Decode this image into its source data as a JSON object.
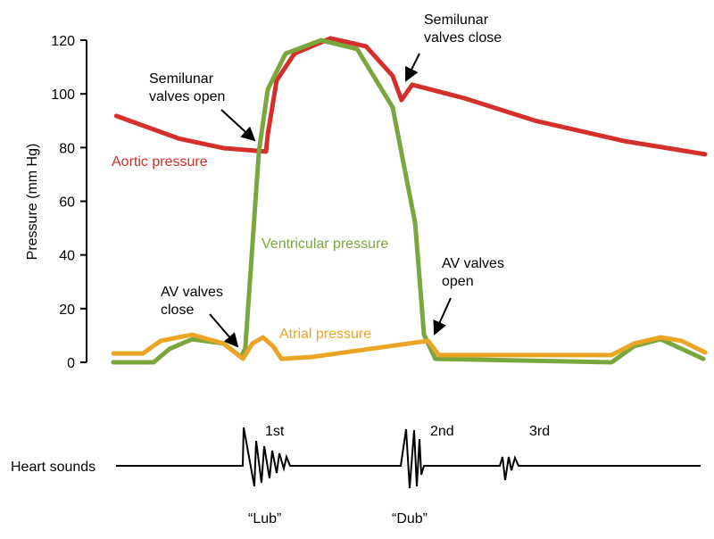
{
  "chart_data": {
    "type": "line",
    "ylabel": "Pressure (mm Hg)",
    "ylim": [
      0,
      120
    ],
    "yticks": [
      0,
      20,
      40,
      60,
      80,
      100,
      120
    ],
    "grid": false,
    "series": [
      {
        "name": "Aortic pressure",
        "color": "#d42f2a",
        "x": [
          0.5,
          11,
          18.6,
          25.8,
          26.1,
          27.6,
          30.6,
          36.7,
          42.7,
          47.2,
          48.7,
          50.5,
          59.3,
          71.3,
          86.4,
          100
        ],
        "y": [
          91.8,
          83.4,
          79.8,
          78.5,
          85,
          105,
          115,
          120.7,
          117.7,
          106.7,
          97.7,
          103.4,
          98.4,
          90,
          82.4,
          77.5
        ]
      },
      {
        "name": "Ventricular pressure",
        "color": "#7ba63e",
        "x": [
          0,
          6.8,
          9.5,
          13.3,
          18.6,
          21.6,
          22.3,
          24.6,
          26.1,
          29.1,
          35.1,
          41.2,
          47.2,
          51,
          52.5,
          54.4,
          84.2,
          88,
          92.5,
          99.7
        ],
        "y": [
          0,
          0,
          5,
          8.6,
          7,
          2,
          5.3,
          78.5,
          101.7,
          115,
          120,
          116.7,
          95,
          51.9,
          10.3,
          1.3,
          0,
          6,
          8.6,
          1.3
        ]
      },
      {
        "name": "Atrial pressure",
        "color": "#eba524",
        "x": [
          0,
          5,
          8,
          13.3,
          18.6,
          21.9,
          23.5,
          25.3,
          27,
          28.4,
          33.6,
          53.2,
          55,
          84.2,
          88,
          92.5,
          96,
          100
        ],
        "y": [
          3.3,
          3.3,
          8,
          10.3,
          7,
          1.3,
          7,
          9.3,
          6,
          1.3,
          2,
          8,
          2.7,
          2.7,
          7,
          9.3,
          8,
          3.7
        ]
      }
    ],
    "annotations": {
      "semilunar_open": "Semilunar\nvalves open",
      "semilunar_close": "Semilunar\nvalves close",
      "av_close": "AV valves\nclose",
      "av_open": "AV valves\nopen"
    },
    "heart_sounds": {
      "label": "Heart sounds",
      "sounds": [
        {
          "name": "1st",
          "word": "“Lub”"
        },
        {
          "name": "2nd",
          "word": "“Dub”"
        },
        {
          "name": "3rd",
          "word": ""
        }
      ]
    }
  }
}
